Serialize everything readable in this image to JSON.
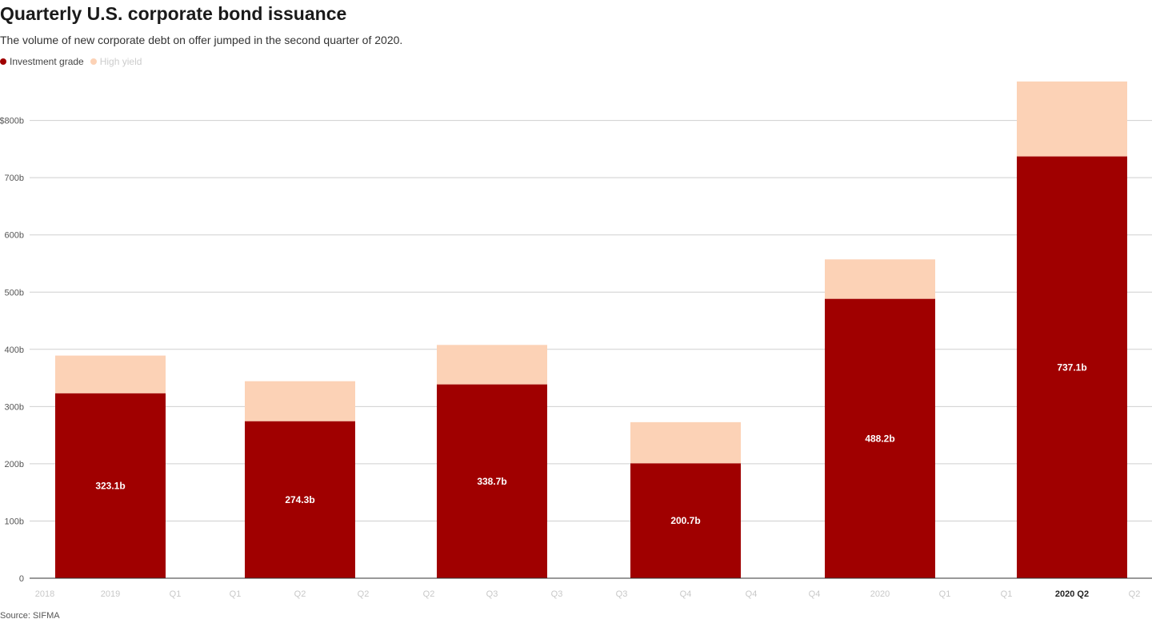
{
  "title": "Quarterly U.S. corporate bond issuance",
  "subtitle": "The volume of new corporate debt on offer jumped in the second quarter of 2020.",
  "source": "Source: SIFMA",
  "legend": [
    {
      "label": "Investment grade",
      "color": "#a00000"
    },
    {
      "label": "High yield",
      "color": "#fcd2b6"
    }
  ],
  "chart_data": {
    "type": "bar",
    "stacked": true,
    "title": "Quarterly U.S. corporate bond issuance",
    "subtitle": "The volume of new corporate debt on offer jumped in the second quarter of 2020.",
    "xlabel": "",
    "ylabel": "",
    "ylim": [
      0,
      870
    ],
    "y_ticks": [
      {
        "value": 0,
        "label": "0"
      },
      {
        "value": 100,
        "label": "100b"
      },
      {
        "value": 200,
        "label": "200b"
      },
      {
        "value": 300,
        "label": "300b"
      },
      {
        "value": 400,
        "label": "400b"
      },
      {
        "value": 500,
        "label": "500b"
      },
      {
        "value": 600,
        "label": "600b"
      },
      {
        "value": 700,
        "label": "700b"
      },
      {
        "value": 800,
        "label": "$800b"
      }
    ],
    "grid": true,
    "legend_position": "top-left",
    "categories": [
      "2019",
      "Q2",
      "Q3",
      "Q4",
      "2020",
      "2020 Q2"
    ],
    "series": [
      {
        "name": "Investment grade",
        "color": "#a00000",
        "values": [
          323.1,
          274.3,
          338.7,
          200.7,
          488.2,
          737.1
        ]
      },
      {
        "name": "High yield",
        "color": "#fcd2b6",
        "values": [
          66,
          70,
          69,
          72,
          69,
          131
        ]
      }
    ],
    "data_labels": [
      "323.1b",
      "274.3b",
      "338.7b",
      "200.7b",
      "488.2b",
      "737.1b"
    ],
    "x_tick_labels": [
      {
        "text": "2018",
        "group": 0,
        "pos": "left",
        "emphasis": false
      },
      {
        "text": "2019",
        "group": 0,
        "pos": "center",
        "emphasis": false
      },
      {
        "text": "Q1",
        "group": 0,
        "pos": "right",
        "emphasis": false
      },
      {
        "text": "Q1",
        "group": 1,
        "pos": "left",
        "emphasis": false
      },
      {
        "text": "Q2",
        "group": 1,
        "pos": "center",
        "emphasis": false
      },
      {
        "text": "Q2",
        "group": 1,
        "pos": "right",
        "emphasis": false
      },
      {
        "text": "Q2",
        "group": 2,
        "pos": "left",
        "emphasis": false
      },
      {
        "text": "Q3",
        "group": 2,
        "pos": "center",
        "emphasis": false
      },
      {
        "text": "Q3",
        "group": 2,
        "pos": "right",
        "emphasis": false
      },
      {
        "text": "Q3",
        "group": 3,
        "pos": "left",
        "emphasis": false
      },
      {
        "text": "Q4",
        "group": 3,
        "pos": "center",
        "emphasis": false
      },
      {
        "text": "Q4",
        "group": 3,
        "pos": "right",
        "emphasis": false
      },
      {
        "text": "Q4",
        "group": 4,
        "pos": "left",
        "emphasis": false
      },
      {
        "text": "2020",
        "group": 4,
        "pos": "center",
        "emphasis": false
      },
      {
        "text": "Q1",
        "group": 4,
        "pos": "right",
        "emphasis": false
      },
      {
        "text": "Q1",
        "group": 5,
        "pos": "left",
        "emphasis": false
      },
      {
        "text": "2020 Q2",
        "group": 5,
        "pos": "center",
        "emphasis": true
      },
      {
        "text": "Q2",
        "group": 5,
        "pos": "right",
        "emphasis": false
      }
    ]
  }
}
